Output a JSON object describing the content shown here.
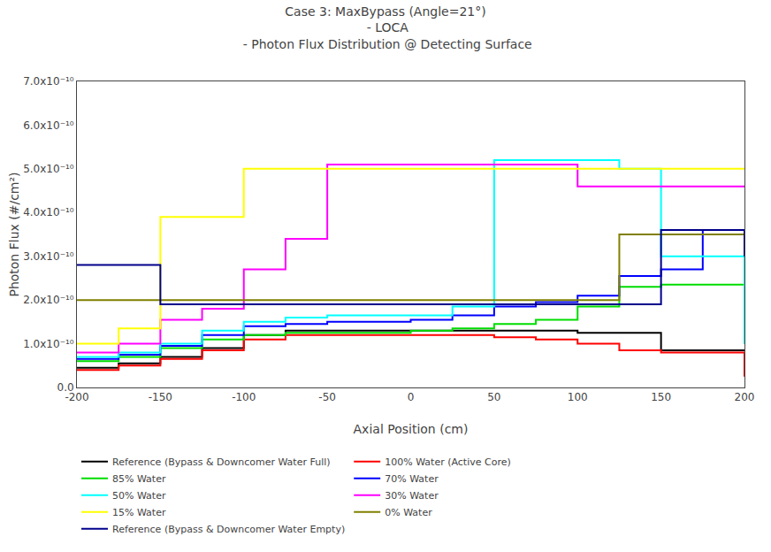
{
  "chart_data": {
    "type": "line",
    "line_style": "step",
    "title": "Case 3: MaxBypass (Angle=21°)\n - LOCA\n - Photon Flux Distribution @ Detecting Surface",
    "x_label": "Axial Position (cm)",
    "y_label": "Photon Flux (#/cm²)",
    "x": [
      -200,
      -175,
      -150,
      -125,
      -100,
      -75,
      -50,
      -25,
      0,
      25,
      50,
      75,
      100,
      125,
      150,
      175,
      200
    ],
    "xlim": [
      -200,
      200
    ],
    "xticks": [
      -200,
      -150,
      -100,
      -50,
      0,
      50,
      100,
      150,
      200
    ],
    "ylim": [
      0,
      7e-10
    ],
    "yticks": [
      {
        "value": 0,
        "label": "0.0"
      },
      {
        "value": 1e-10,
        "label": "1.0x10⁻¹⁰"
      },
      {
        "value": 2e-10,
        "label": "2.0x10⁻¹⁰"
      },
      {
        "value": 3e-10,
        "label": "3.0x10⁻¹⁰"
      },
      {
        "value": 4e-10,
        "label": "4.0x10⁻¹⁰"
      },
      {
        "value": 5e-10,
        "label": "5.0x10⁻¹⁰"
      },
      {
        "value": 6e-10,
        "label": "6.0x10⁻¹⁰"
      },
      {
        "value": 7e-10,
        "label": "7.0x10⁻¹⁰"
      }
    ],
    "grid": false,
    "legend": "bottom",
    "series": [
      {
        "name": "Reference (Bypass & Downcomer Water Full)",
        "color": "#000000",
        "values": [
          4.5e-11,
          5.5e-11,
          7e-11,
          9e-11,
          1.2e-10,
          1.3e-10,
          1.3e-10,
          1.3e-10,
          1.3e-10,
          1.3e-10,
          1.3e-10,
          1.3e-10,
          1.25e-10,
          1.25e-10,
          8.5e-11,
          8.5e-11,
          8.5e-11
        ]
      },
      {
        "name": "100% Water (Active Core)",
        "color": "#ff0000",
        "values": [
          4e-11,
          5e-11,
          6.5e-11,
          8.5e-11,
          1.1e-10,
          1.2e-10,
          1.2e-10,
          1.2e-10,
          1.2e-10,
          1.2e-10,
          1.15e-10,
          1.1e-10,
          1e-10,
          8.5e-11,
          8e-11,
          8e-11,
          2.5e-11
        ]
      },
      {
        "name": "85% Water",
        "color": "#00dd00",
        "values": [
          6e-11,
          7e-11,
          9e-11,
          1.1e-10,
          1.2e-10,
          1.25e-10,
          1.25e-10,
          1.25e-10,
          1.3e-10,
          1.35e-10,
          1.45e-10,
          1.55e-10,
          1.85e-10,
          2.3e-10,
          2.35e-10,
          2.35e-10,
          1e-10
        ]
      },
      {
        "name": "70% Water",
        "color": "#0000ff",
        "values": [
          6.5e-11,
          7.5e-11,
          9.5e-11,
          1.2e-10,
          1.4e-10,
          1.45e-10,
          1.5e-10,
          1.5e-10,
          1.55e-10,
          1.65e-10,
          1.85e-10,
          1.95e-10,
          2.1e-10,
          2.55e-10,
          2.7e-10,
          3.6e-10,
          1.1e-10
        ]
      },
      {
        "name": "50% Water",
        "color": "#00ffff",
        "values": [
          7e-11,
          8e-11,
          1e-10,
          1.3e-10,
          1.5e-10,
          1.6e-10,
          1.65e-10,
          1.65e-10,
          1.65e-10,
          1.85e-10,
          5.2e-10,
          5.2e-10,
          5.2e-10,
          5e-10,
          3e-10,
          3e-10,
          1e-10
        ]
      },
      {
        "name": "30% Water",
        "color": "#ff00ff",
        "values": [
          8e-11,
          1e-10,
          1.55e-10,
          1.8e-10,
          2.7e-10,
          3.4e-10,
          5.1e-10,
          5.1e-10,
          5.1e-10,
          5.1e-10,
          5.1e-10,
          5.1e-10,
          4.6e-10,
          4.6e-10,
          4.6e-10,
          4.6e-10,
          4.6e-10
        ]
      },
      {
        "name": "15% Water",
        "color": "#ffff00",
        "values": [
          1e-10,
          1.35e-10,
          3.9e-10,
          3.9e-10,
          5e-10,
          5e-10,
          5e-10,
          5e-10,
          5e-10,
          5e-10,
          5e-10,
          5e-10,
          5e-10,
          5e-10,
          5e-10,
          5e-10,
          5e-10
        ]
      },
      {
        "name": "0% Water",
        "color": "#808000",
        "values": [
          2e-10,
          2e-10,
          2e-10,
          2e-10,
          2e-10,
          2e-10,
          2e-10,
          2e-10,
          2e-10,
          2e-10,
          2e-10,
          2e-10,
          2e-10,
          3.5e-10,
          3.5e-10,
          3.5e-10,
          3.5e-10
        ]
      },
      {
        "name": "Reference (Bypass & Downcomer Water Empty)",
        "color": "#00008b",
        "values": [
          2.8e-10,
          2.8e-10,
          1.9e-10,
          1.9e-10,
          1.9e-10,
          1.9e-10,
          1.9e-10,
          1.9e-10,
          1.9e-10,
          1.9e-10,
          1.9e-10,
          1.9e-10,
          1.9e-10,
          1.9e-10,
          3.6e-10,
          3.6e-10,
          3e-10
        ]
      }
    ]
  }
}
